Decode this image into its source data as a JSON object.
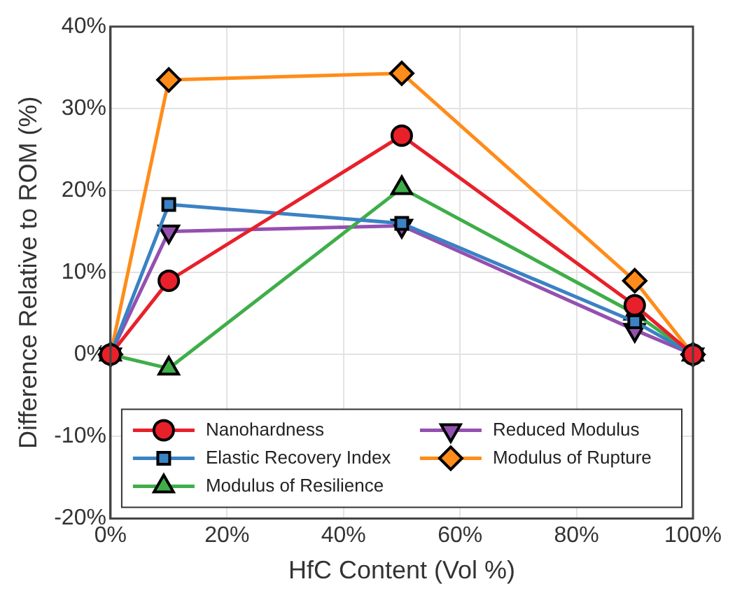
{
  "chart_data": {
    "type": "line",
    "xlabel": "HfC Content (Vol %)",
    "ylabel": "Difference Relative to ROM (%)",
    "x": [
      0,
      10,
      50,
      90,
      100
    ],
    "series": [
      {
        "name": "Nanohardness",
        "color": "#e8202a",
        "marker": "circle",
        "values": [
          0,
          9,
          26.7,
          6,
          0
        ]
      },
      {
        "name": "Elastic Recovery Index",
        "color": "#3a82c4",
        "marker": "square",
        "values": [
          0,
          18.3,
          16,
          4,
          0
        ]
      },
      {
        "name": "Modulus of Resilience",
        "color": "#3fae49",
        "marker": "triangle",
        "values": [
          0,
          -1.7,
          20.3,
          5,
          0
        ]
      },
      {
        "name": "Reduced Modulus",
        "color": "#9450b0",
        "marker": "triangle_down",
        "values": [
          0,
          15,
          15.7,
          3,
          0
        ]
      },
      {
        "name": "Modulus of Rupture",
        "color": "#ff8c1a",
        "marker": "diamond",
        "values": [
          0,
          33.5,
          34.3,
          9,
          0
        ]
      }
    ],
    "xlim": [
      0,
      100
    ],
    "xticks": [
      {
        "value": 0,
        "label": "0%"
      },
      {
        "value": 20,
        "label": "20%"
      },
      {
        "value": 40,
        "label": "40%"
      },
      {
        "value": 60,
        "label": "60%"
      },
      {
        "value": 80,
        "label": "80%"
      },
      {
        "value": 100,
        "label": "100%"
      }
    ],
    "ylim": [
      -20,
      40
    ],
    "yticks": [
      {
        "value": -20,
        "label": "-20%"
      },
      {
        "value": -10,
        "label": "-10%"
      },
      {
        "value": 0,
        "label": "0%"
      },
      {
        "value": 10,
        "label": "10%"
      },
      {
        "value": 20,
        "label": "20%"
      },
      {
        "value": 30,
        "label": "30%"
      },
      {
        "value": 40,
        "label": "40%"
      }
    ],
    "grid": true,
    "legend": "bottom",
    "line_style": "solid"
  }
}
